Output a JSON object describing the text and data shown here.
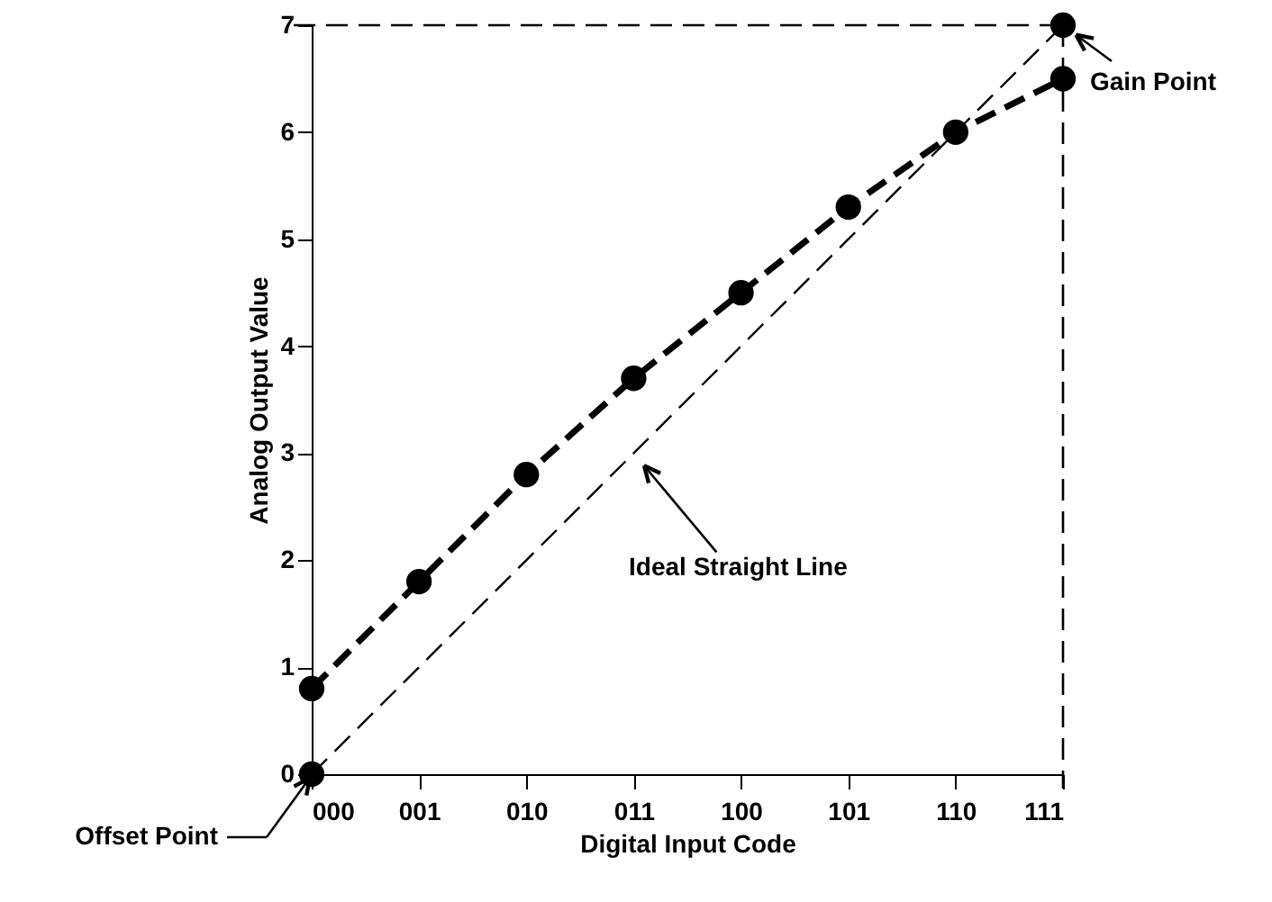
{
  "chart_data": {
    "type": "line",
    "xlabel": "Digital Input Code",
    "ylabel": "Analog Output Value",
    "categories": [
      "000",
      "001",
      "010",
      "011",
      "100",
      "101",
      "110",
      "111"
    ],
    "series": [
      {
        "color": "#000000",
        "line_style": "dashed",
        "marker": "circle",
        "values": [
          0.8,
          1.8,
          2.8,
          3.7,
          4.5,
          5.3,
          6.0,
          6.5
        ]
      },
      {
        "color": "#000000",
        "line_style": "dashed",
        "marker": "none",
        "values": [
          0,
          1,
          2,
          3,
          4,
          5,
          6,
          7
        ]
      },
      {
        "type": "scatter",
        "color": "#000000",
        "marker": "circle",
        "values": [
          0,
          null,
          null,
          null,
          null,
          null,
          null,
          7
        ]
      }
    ],
    "ylim": [
      0,
      7
    ],
    "yticks": [
      0,
      1,
      2,
      3,
      4,
      5,
      6,
      7
    ],
    "grid": false,
    "ref_lines": [
      {
        "axis": "y",
        "value": 7,
        "line_style": "dashed",
        "color": "#000000"
      },
      {
        "axis": "x",
        "value": "111",
        "line_style": "dashed",
        "color": "#000000"
      }
    ],
    "annotations": [
      {
        "text": "Gain Point",
        "x": "111",
        "y": 7
      },
      "Offset Point",
      {
        "text": "Ideal Straight Line",
        "x": "011",
        "y": 3
      }
    ]
  }
}
